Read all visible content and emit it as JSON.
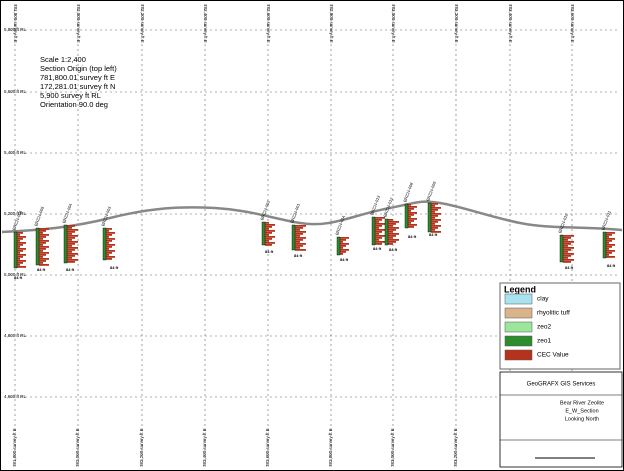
{
  "info": [
    "Scale 1:2,400",
    "Section Origin (top left)",
    "781,800.01 survey ft E",
    "172,281.01 survey ft N",
    "5,900 survey ft RL",
    "Orientation 90.0 deg"
  ],
  "y_labels": [
    "5,800 ft RL",
    "5,600 ft RL",
    "5,400 ft RL",
    "5,200 ft RL",
    "5,000 ft RL",
    "4,800 ft RL",
    "4,600 ft RL"
  ],
  "x_labels": [
    "781,800 survey ft E",
    "782,000 survey ft E",
    "782,200 survey ft E",
    "782,400 survey ft E",
    "782,600 survey ft E",
    "782,800 survey ft E",
    "783,000 survey ft E",
    "783,200 survey ft E",
    "783,400 survey ft E",
    "783,600 survey ft E"
  ],
  "holes": [
    {
      "label": "BRZ24-006",
      "depth": "84 ft"
    },
    {
      "label": "BRZ24-005",
      "depth": "84 ft"
    },
    {
      "label": "BRZ24-004",
      "depth": "84 ft"
    },
    {
      "label": "BRZ24-003",
      "depth": "84 ft"
    },
    {
      "label": "BRZ24-002",
      "depth": "84 ft"
    },
    {
      "label": "BRZ24-001",
      "depth": "84 ft"
    },
    {
      "label": "BRZ24-014",
      "depth": "84 ft"
    },
    {
      "label": "BRZ24-013",
      "depth": "84 ft"
    },
    {
      "label": "BRZ24-012",
      "depth": "84 ft"
    },
    {
      "label": "BRZ24-008",
      "depth": "84 ft"
    },
    {
      "label": "BRZ24-009",
      "depth": "84 ft"
    },
    {
      "label": "BRZ24-010",
      "depth": "84 ft"
    },
    {
      "label": "BRZ24-011",
      "depth": "84 ft"
    }
  ],
  "legend": {
    "title": "Legend",
    "items": [
      "clay",
      "rhyolitic tuff",
      "zeo2",
      "zeo1",
      "CEC Value"
    ]
  },
  "title_block": {
    "company": "GeoGRAFX GIS Services",
    "title": [
      "Bear River Zeolite",
      "E_W_Section",
      "Looking North"
    ]
  }
}
